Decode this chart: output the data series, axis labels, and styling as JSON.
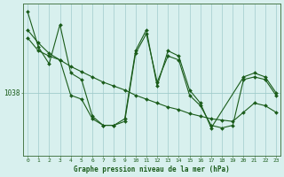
{
  "xlabel": "Graphe pression niveau de la mer (hPa)",
  "ylabel_tick": "1038",
  "ytick_val": 1038,
  "bg_color": "#d8f0ee",
  "plot_bg_color": "#d8f0ee",
  "line_color": "#1a5c1a",
  "grid_color": "#a0cccc",
  "axis_color": "#4a7a4a",
  "xmin": 0,
  "xmax": 23,
  "ymin": 1033.2,
  "ymax": 1044.8,
  "line1_x": [
    0,
    1,
    2,
    3,
    4,
    5,
    6,
    7,
    8,
    9,
    10,
    11,
    12,
    13,
    14,
    15,
    16,
    17,
    18,
    19,
    20,
    21,
    22,
    23
  ],
  "line1_y": [
    1042.8,
    1041.8,
    1041.0,
    1040.5,
    1040.0,
    1039.6,
    1039.2,
    1038.8,
    1038.5,
    1038.2,
    1037.8,
    1037.5,
    1037.2,
    1036.9,
    1036.7,
    1036.4,
    1036.2,
    1036.0,
    1035.9,
    1035.8,
    1036.5,
    1037.2,
    1037.0,
    1036.5
  ],
  "line2_x": [
    0,
    1,
    2,
    3,
    4,
    5,
    6,
    7,
    8,
    9,
    10,
    11,
    12,
    13,
    14,
    15,
    16,
    17,
    20,
    21,
    22,
    23
  ],
  "line2_y": [
    1044.2,
    1041.5,
    1040.2,
    1043.2,
    1039.5,
    1039.0,
    1036.2,
    1035.5,
    1035.5,
    1036.0,
    1041.2,
    1042.8,
    1038.5,
    1041.2,
    1040.8,
    1038.2,
    1037.2,
    1035.3,
    1039.2,
    1039.5,
    1039.2,
    1038.0
  ],
  "line3_x": [
    0,
    1,
    2,
    3,
    4,
    5,
    6,
    7,
    8,
    9,
    10,
    11,
    12,
    13,
    14,
    15,
    16,
    17,
    18,
    19,
    20,
    21,
    22,
    23
  ],
  "line3_y": [
    1042.2,
    1041.2,
    1040.8,
    1040.5,
    1037.8,
    1037.5,
    1036.0,
    1035.5,
    1035.5,
    1035.8,
    1041.0,
    1042.5,
    1038.8,
    1040.8,
    1040.5,
    1037.8,
    1037.0,
    1035.5,
    1035.3,
    1035.5,
    1039.0,
    1039.2,
    1039.0,
    1037.8
  ]
}
